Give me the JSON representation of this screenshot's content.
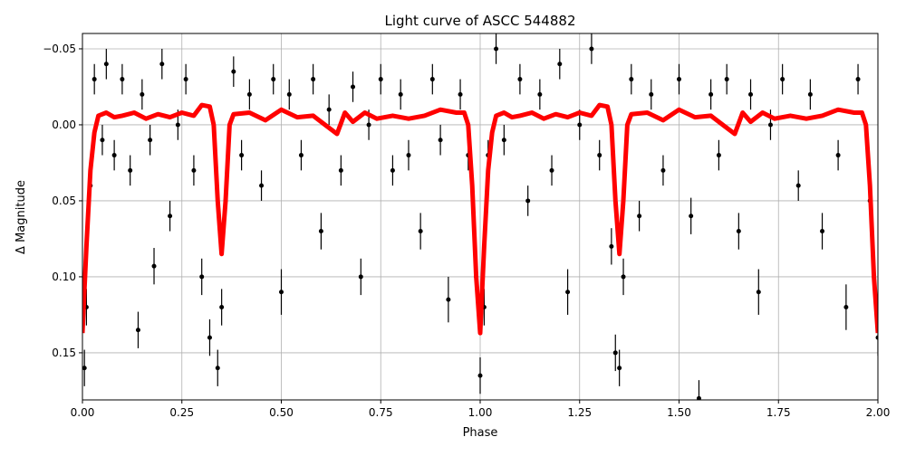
{
  "chart_data": {
    "type": "scatter",
    "title": "Light curve of ASCC 544882",
    "x_label": "Phase",
    "y_label": "Δ Magnitude",
    "xlim": [
      0,
      2
    ],
    "ylim": [
      0.181,
      -0.0601
    ],
    "y_inverted": true,
    "grid": true,
    "xticks": [
      {
        "value": 0,
        "label": "0.00"
      },
      {
        "value": 0.25,
        "label": "0.25"
      },
      {
        "value": 0.5,
        "label": "0.50"
      },
      {
        "value": 0.75,
        "label": "0.75"
      },
      {
        "value": 1,
        "label": "1.00"
      },
      {
        "value": 1.25,
        "label": "1.25"
      },
      {
        "value": 1.5,
        "label": "1.50"
      },
      {
        "value": 1.75,
        "label": "1.75"
      },
      {
        "value": 2,
        "label": "2.00"
      }
    ],
    "yticks": [
      {
        "value": -0.05,
        "label": "−0.05"
      },
      {
        "value": 0,
        "label": "0.00"
      },
      {
        "value": 0.05,
        "label": "0.05"
      },
      {
        "value": 0.1,
        "label": "0.10"
      },
      {
        "value": 0.15,
        "label": "0.15"
      }
    ],
    "points": {
      "color": "#000000",
      "x": [
        0.005,
        0.01,
        0.02,
        0.03,
        0.05,
        0.06,
        0.08,
        0.1,
        0.12,
        0.14,
        0.15,
        0.17,
        0.18,
        0.2,
        0.22,
        0.24,
        0.26,
        0.28,
        0.3,
        0.32,
        0.34,
        0.35,
        0.36,
        0.38,
        0.4,
        0.42,
        0.45,
        0.48,
        0.5,
        0.52,
        0.55,
        0.58,
        0.6,
        0.62,
        0.65,
        0.68,
        0.7,
        0.72,
        0.75,
        0.78,
        0.8,
        0.82,
        0.85,
        0.88,
        0.9,
        0.92,
        0.95,
        0.97,
        0.99,
        1.0,
        1.01,
        1.02,
        1.04,
        1.06,
        1.1,
        1.12,
        1.15,
        1.18,
        1.2,
        1.22,
        1.25,
        1.28,
        1.3,
        1.33,
        1.34,
        1.35,
        1.36,
        1.38,
        1.4,
        1.43,
        1.46,
        1.5,
        1.53,
        1.55,
        1.58,
        1.6,
        1.62,
        1.65,
        1.68,
        1.7,
        1.73,
        1.76,
        1.8,
        1.83,
        1.86,
        1.9,
        1.92,
        1.95,
        1.98,
        2.0
      ],
      "y": [
        0.16,
        0.12,
        0.04,
        -0.03,
        0.01,
        -0.04,
        0.02,
        -0.03,
        0.03,
        0.135,
        -0.02,
        0.01,
        0.093,
        -0.04,
        0.06,
        0.0,
        -0.03,
        0.03,
        0.1,
        0.14,
        0.16,
        0.12,
        0.05,
        -0.035,
        0.02,
        -0.02,
        0.04,
        -0.03,
        0.11,
        -0.02,
        0.02,
        -0.03,
        0.07,
        -0.01,
        0.03,
        -0.025,
        0.1,
        0.0,
        -0.03,
        0.03,
        -0.02,
        0.02,
        0.07,
        -0.03,
        0.01,
        0.115,
        -0.02,
        0.02,
        0.1,
        0.165,
        0.12,
        0.02,
        -0.05,
        0.01,
        -0.03,
        0.05,
        -0.02,
        0.03,
        -0.04,
        0.11,
        0.0,
        -0.05,
        0.02,
        0.08,
        0.15,
        0.16,
        0.1,
        -0.03,
        0.06,
        -0.02,
        0.03,
        -0.03,
        0.06,
        0.18,
        -0.02,
        0.02,
        -0.03,
        0.07,
        -0.02,
        0.11,
        0.0,
        -0.03,
        0.04,
        -0.02,
        0.07,
        0.02,
        0.12,
        -0.03,
        0.05,
        0.14
      ],
      "yerr": [
        0.012,
        0.012,
        0.01,
        0.01,
        0.01,
        0.01,
        0.01,
        0.01,
        0.01,
        0.012,
        0.01,
        0.01,
        0.012,
        0.01,
        0.01,
        0.01,
        0.01,
        0.01,
        0.012,
        0.012,
        0.012,
        0.012,
        0.01,
        0.01,
        0.01,
        0.01,
        0.01,
        0.01,
        0.015,
        0.01,
        0.01,
        0.01,
        0.012,
        0.01,
        0.01,
        0.01,
        0.012,
        0.01,
        0.01,
        0.01,
        0.01,
        0.01,
        0.012,
        0.01,
        0.01,
        0.015,
        0.01,
        0.01,
        0.012,
        0.012,
        0.012,
        0.01,
        0.01,
        0.01,
        0.01,
        0.01,
        0.01,
        0.01,
        0.01,
        0.015,
        0.01,
        0.01,
        0.01,
        0.012,
        0.012,
        0.012,
        0.012,
        0.01,
        0.01,
        0.01,
        0.01,
        0.01,
        0.012,
        0.012,
        0.01,
        0.01,
        0.01,
        0.012,
        0.01,
        0.015,
        0.01,
        0.01,
        0.01,
        0.01,
        0.012,
        0.01,
        0.015,
        0.01,
        0.012,
        0.012
      ]
    },
    "model": {
      "color": "#ff0000",
      "x": [
        0.0,
        0.01,
        0.02,
        0.03,
        0.04,
        0.06,
        0.08,
        0.1,
        0.13,
        0.16,
        0.19,
        0.22,
        0.25,
        0.28,
        0.3,
        0.32,
        0.33,
        0.34,
        0.35,
        0.36,
        0.37,
        0.38,
        0.42,
        0.46,
        0.5,
        0.54,
        0.58,
        0.61,
        0.64,
        0.66,
        0.68,
        0.71,
        0.74,
        0.78,
        0.82,
        0.86,
        0.9,
        0.94,
        0.96,
        0.97,
        0.98,
        0.99,
        1.0,
        1.01,
        1.02,
        1.03,
        1.04,
        1.06,
        1.08,
        1.1,
        1.13,
        1.16,
        1.19,
        1.22,
        1.25,
        1.28,
        1.3,
        1.32,
        1.33,
        1.34,
        1.35,
        1.36,
        1.37,
        1.38,
        1.42,
        1.46,
        1.5,
        1.54,
        1.58,
        1.61,
        1.64,
        1.66,
        1.68,
        1.71,
        1.74,
        1.78,
        1.82,
        1.86,
        1.9,
        1.94,
        1.96,
        1.97,
        1.98,
        1.99,
        2.0
      ],
      "y": [
        0.137,
        0.08,
        0.03,
        0.005,
        -0.006,
        -0.008,
        -0.005,
        -0.006,
        -0.008,
        -0.004,
        -0.007,
        -0.005,
        -0.008,
        -0.006,
        -0.013,
        -0.012,
        0.0,
        0.05,
        0.085,
        0.05,
        0.0,
        -0.007,
        -0.008,
        -0.003,
        -0.01,
        -0.005,
        -0.006,
        0.0,
        0.006,
        -0.008,
        -0.002,
        -0.008,
        -0.004,
        -0.006,
        -0.004,
        -0.006,
        -0.01,
        -0.008,
        -0.008,
        0.0,
        0.04,
        0.1,
        0.137,
        0.08,
        0.03,
        0.005,
        -0.006,
        -0.008,
        -0.005,
        -0.006,
        -0.008,
        -0.004,
        -0.007,
        -0.005,
        -0.008,
        -0.006,
        -0.013,
        -0.012,
        0.0,
        0.05,
        0.085,
        0.05,
        0.0,
        -0.007,
        -0.008,
        -0.003,
        -0.01,
        -0.005,
        -0.006,
        0.0,
        0.006,
        -0.008,
        -0.002,
        -0.008,
        -0.004,
        -0.006,
        -0.004,
        -0.006,
        -0.01,
        -0.008,
        -0.008,
        0.0,
        0.04,
        0.1,
        0.137
      ]
    }
  }
}
